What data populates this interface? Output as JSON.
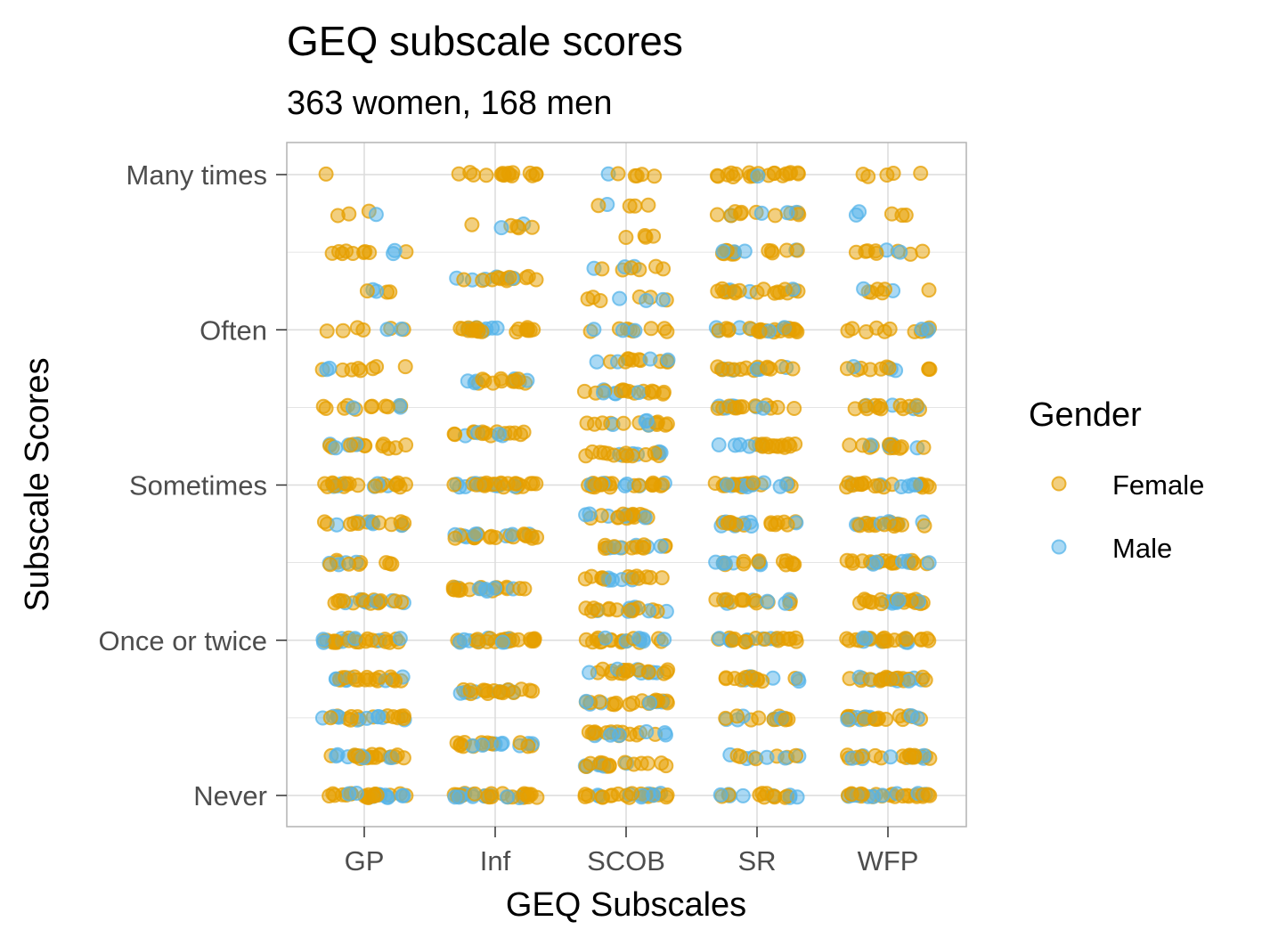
{
  "chart_data": {
    "type": "scatter",
    "title": "GEQ subscale scores",
    "subtitle": "363 women, 168 men",
    "xlabel": "GEQ Subscales",
    "ylabel": "Subscale Scores",
    "categories": [
      "GP",
      "Inf",
      "SCOB",
      "SR",
      "WFP"
    ],
    "y_ticks": [
      {
        "value": 0,
        "label": "Never"
      },
      {
        "value": 1,
        "label": "Once or twice"
      },
      {
        "value": 2,
        "label": "Sometimes"
      },
      {
        "value": 3,
        "label": "Often"
      },
      {
        "value": 4,
        "label": "Many times"
      }
    ],
    "ylim": [
      0,
      4
    ],
    "jitter": "horizontal",
    "grid": true,
    "legend": {
      "title": "Gender",
      "position": "right"
    },
    "colors": {
      "Female": "#E69F00",
      "Male": "#56B4E9",
      "grid": "#dcdcdc",
      "panel_border": "#b3b3b3"
    },
    "point_opacity": 0.5,
    "series": [
      {
        "name": "Female",
        "color": "#E69F00",
        "groups": {
          "GP": [
            [
              0,
              22
            ],
            [
              0.25,
              16
            ],
            [
              0.5,
              14
            ],
            [
              0.75,
              18
            ],
            [
              1,
              22
            ],
            [
              1.25,
              15
            ],
            [
              1.5,
              9
            ],
            [
              1.75,
              12
            ],
            [
              2,
              18
            ],
            [
              2.25,
              12
            ],
            [
              2.5,
              10
            ],
            [
              2.75,
              8
            ],
            [
              3,
              6
            ],
            [
              3.25,
              3
            ],
            [
              3.5,
              9
            ],
            [
              3.75,
              3
            ],
            [
              4,
              1
            ]
          ],
          "Inf": [
            [
              0,
              24
            ],
            [
              0.33,
              14
            ],
            [
              0.67,
              16
            ],
            [
              1,
              22
            ],
            [
              1.33,
              16
            ],
            [
              1.67,
              18
            ],
            [
              2,
              22
            ],
            [
              2.33,
              14
            ],
            [
              2.67,
              12
            ],
            [
              3,
              20
            ],
            [
              3.33,
              12
            ],
            [
              3.67,
              5
            ],
            [
              4,
              16
            ]
          ],
          "SCOB": [
            [
              0,
              20
            ],
            [
              0.2,
              14
            ],
            [
              0.4,
              14
            ],
            [
              0.6,
              16
            ],
            [
              0.8,
              16
            ],
            [
              1,
              16
            ],
            [
              1.2,
              14
            ],
            [
              1.4,
              12
            ],
            [
              1.6,
              12
            ],
            [
              1.8,
              14
            ],
            [
              2,
              20
            ],
            [
              2.2,
              14
            ],
            [
              2.4,
              12
            ],
            [
              2.6,
              14
            ],
            [
              2.8,
              10
            ],
            [
              3,
              8
            ],
            [
              3.2,
              6
            ],
            [
              3.4,
              6
            ],
            [
              3.6,
              4
            ],
            [
              3.8,
              4
            ],
            [
              4,
              5
            ]
          ],
          "SR": [
            [
              0,
              10
            ],
            [
              0.25,
              6
            ],
            [
              0.5,
              10
            ],
            [
              0.75,
              12
            ],
            [
              1,
              16
            ],
            [
              1.25,
              12
            ],
            [
              1.5,
              12
            ],
            [
              1.75,
              14
            ],
            [
              2,
              18
            ],
            [
              2.25,
              14
            ],
            [
              2.5,
              12
            ],
            [
              2.75,
              14
            ],
            [
              3,
              22
            ],
            [
              3.25,
              16
            ],
            [
              3.5,
              12
            ],
            [
              3.75,
              10
            ],
            [
              4,
              20
            ]
          ],
          "WFP": [
            [
              0,
              22
            ],
            [
              0.25,
              16
            ],
            [
              0.5,
              16
            ],
            [
              0.75,
              18
            ],
            [
              1,
              20
            ],
            [
              1.25,
              18
            ],
            [
              1.5,
              16
            ],
            [
              1.75,
              14
            ],
            [
              2,
              18
            ],
            [
              2.25,
              12
            ],
            [
              2.5,
              12
            ],
            [
              2.75,
              10
            ],
            [
              3,
              10
            ],
            [
              3.25,
              6
            ],
            [
              3.5,
              8
            ],
            [
              3.75,
              3
            ],
            [
              4,
              5
            ]
          ]
        }
      },
      {
        "name": "Male",
        "color": "#56B4E9",
        "groups": {
          "GP": [
            [
              0,
              10
            ],
            [
              0.25,
              8
            ],
            [
              0.5,
              10
            ],
            [
              0.75,
              7
            ],
            [
              1,
              8
            ],
            [
              1.25,
              6
            ],
            [
              1.5,
              4
            ],
            [
              1.75,
              5
            ],
            [
              2,
              6
            ],
            [
              2.25,
              4
            ],
            [
              2.5,
              3
            ],
            [
              2.75,
              2
            ],
            [
              3,
              2
            ],
            [
              3.25,
              2
            ],
            [
              3.5,
              2
            ],
            [
              3.75,
              1
            ]
          ],
          "Inf": [
            [
              0,
              10
            ],
            [
              0.33,
              8
            ],
            [
              0.67,
              7
            ],
            [
              1,
              8
            ],
            [
              1.33,
              6
            ],
            [
              1.67,
              8
            ],
            [
              2,
              8
            ],
            [
              2.33,
              4
            ],
            [
              2.67,
              5
            ],
            [
              3,
              6
            ],
            [
              3.33,
              5
            ],
            [
              3.67,
              2
            ]
          ],
          "SCOB": [
            [
              0,
              8
            ],
            [
              0.2,
              6
            ],
            [
              0.4,
              7
            ],
            [
              0.6,
              6
            ],
            [
              0.8,
              7
            ],
            [
              1,
              7
            ],
            [
              1.2,
              6
            ],
            [
              1.4,
              5
            ],
            [
              1.6,
              6
            ],
            [
              1.8,
              6
            ],
            [
              2,
              6
            ],
            [
              2.2,
              5
            ],
            [
              2.4,
              4
            ],
            [
              2.6,
              5
            ],
            [
              2.8,
              4
            ],
            [
              3,
              3
            ],
            [
              3.2,
              3
            ],
            [
              3.4,
              3
            ],
            [
              3.8,
              1
            ],
            [
              4,
              1
            ]
          ],
          "SR": [
            [
              0,
              8
            ],
            [
              0.25,
              6
            ],
            [
              0.5,
              6
            ],
            [
              0.75,
              6
            ],
            [
              1,
              8
            ],
            [
              1.25,
              6
            ],
            [
              1.5,
              6
            ],
            [
              1.75,
              8
            ],
            [
              2,
              8
            ],
            [
              2.25,
              5
            ],
            [
              2.5,
              6
            ],
            [
              2.75,
              6
            ],
            [
              3,
              6
            ],
            [
              3.25,
              4
            ],
            [
              3.5,
              4
            ],
            [
              3.75,
              4
            ],
            [
              4,
              1
            ]
          ],
          "WFP": [
            [
              0,
              10
            ],
            [
              0.25,
              8
            ],
            [
              0.5,
              8
            ],
            [
              0.75,
              8
            ],
            [
              1,
              8
            ],
            [
              1.25,
              7
            ],
            [
              1.5,
              6
            ],
            [
              1.75,
              6
            ],
            [
              2,
              6
            ],
            [
              2.25,
              4
            ],
            [
              2.5,
              4
            ],
            [
              2.75,
              3
            ],
            [
              3,
              3
            ],
            [
              3.25,
              2
            ],
            [
              3.5,
              2
            ],
            [
              3.75,
              2
            ]
          ]
        }
      }
    ]
  }
}
